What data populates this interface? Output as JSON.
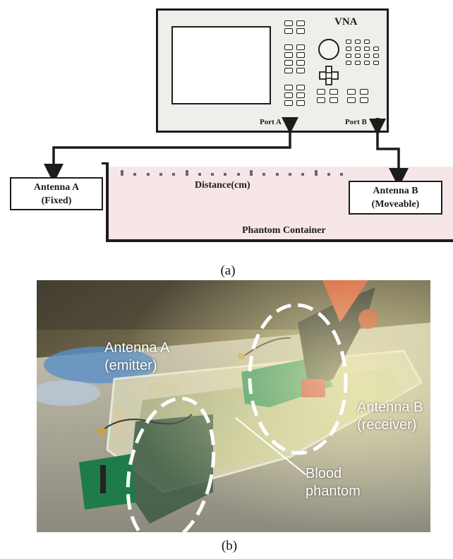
{
  "figure_a": {
    "vna_label": "VNA",
    "port_a_label": "Port A",
    "port_b_label": "Port B",
    "distance_label": "Distance(cm)",
    "container_label": "Phantom Container",
    "antenna_a": {
      "line1": "Antenna A",
      "line2": "(Fixed)"
    },
    "antenna_b": {
      "line1": "Antenna B",
      "line2": "(Moveable)"
    },
    "caption": "(a)"
  },
  "figure_b": {
    "antenna_a_label": {
      "line1": "Antenna A",
      "line2": "(emitter)"
    },
    "antenna_b_label": {
      "line1": "Antenna B",
      "line2": "(receiver)"
    },
    "phantom_label": {
      "line1": "Blood",
      "line2": "phantom"
    },
    "caption": "(b)"
  },
  "colors": {
    "line": "#1c1c1c",
    "vna_body": "#efeeea",
    "container_fill": "#f6e6e7",
    "distance_ticks": "#6c6580",
    "annotation_white": "#ffffff"
  }
}
